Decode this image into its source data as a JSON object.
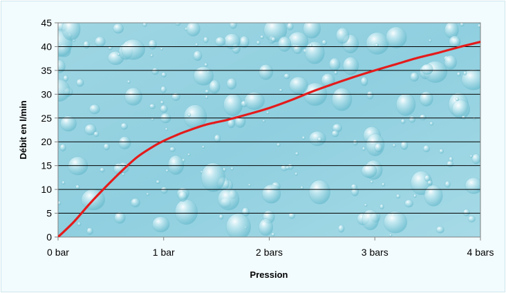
{
  "chart_data": {
    "type": "line",
    "xlabel": "Pression",
    "ylabel": "Débit en l/min",
    "x_ticks": [
      "0 bar",
      "1 bar",
      "2 bars",
      "3 bars",
      "4 bars"
    ],
    "y_ticks": [
      "0",
      "5",
      "10",
      "15",
      "20",
      "25",
      "30",
      "35",
      "40",
      "45"
    ],
    "xlim": [
      0,
      4
    ],
    "ylim": [
      0,
      45
    ],
    "grid": "horizontal",
    "series": [
      {
        "color": "#e41b1b",
        "x": [
          0,
          0.15,
          0.3,
          0.45,
          0.6,
          0.75,
          0.9,
          1.0,
          1.1,
          1.2,
          1.4,
          1.6,
          1.8,
          2.0,
          2.2,
          2.4,
          2.6,
          2.8,
          3.0,
          3.2,
          3.4,
          3.6,
          3.8,
          4.0
        ],
        "y": [
          0,
          3.2,
          7.0,
          10.5,
          13.8,
          16.8,
          19.0,
          20.2,
          21.2,
          22.1,
          23.6,
          24.6,
          25.8,
          27.1,
          28.7,
          30.5,
          32.1,
          33.6,
          35.0,
          36.3,
          37.6,
          38.7,
          39.9,
          41.0
        ]
      }
    ]
  }
}
